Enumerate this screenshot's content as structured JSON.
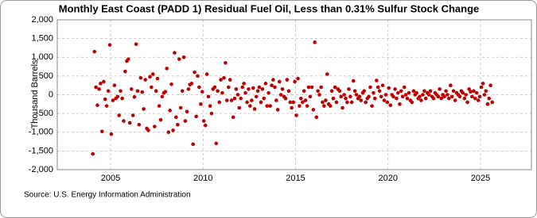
{
  "chart_data": {
    "type": "scatter",
    "title": "Monthly East Coast (PADD 1) Residual Fuel Oil, Less than 0.31% Sulfur Stock Change",
    "y_label": "Thousand Barrels",
    "source": "Source: U.S. Energy Information Administration",
    "color": "#c00000",
    "grid": true,
    "xlim": [
      2002.12,
      2027.75
    ],
    "xticks": [
      2005,
      2010,
      2015,
      2020,
      2025
    ],
    "ylim": [
      -2000,
      2000
    ],
    "yticks": [
      {
        "value": -2000,
        "label": "-2,000"
      },
      {
        "value": -1500,
        "label": "-1,500"
      },
      {
        "value": -1000,
        "label": "-1,000"
      },
      -500,
      0,
      500,
      {
        "value": 1000,
        "label": "1,000"
      },
      {
        "value": 1500,
        "label": "1,500"
      },
      {
        "value": 2000,
        "label": "2,000"
      }
    ],
    "x": [
      2004.04,
      2004.13,
      2004.21,
      2004.29,
      2004.38,
      2004.46,
      2004.54,
      2004.63,
      2004.71,
      2004.79,
      2004.88,
      2004.96,
      2005.04,
      2005.13,
      2005.21,
      2005.29,
      2005.38,
      2005.46,
      2005.54,
      2005.63,
      2005.71,
      2005.79,
      2005.88,
      2005.96,
      2006.04,
      2006.13,
      2006.21,
      2006.29,
      2006.38,
      2006.46,
      2006.54,
      2006.63,
      2006.71,
      2006.79,
      2006.88,
      2006.96,
      2007.04,
      2007.13,
      2007.21,
      2007.29,
      2007.38,
      2007.46,
      2007.54,
      2007.63,
      2007.71,
      2007.79,
      2007.88,
      2007.96,
      2008.04,
      2008.13,
      2008.21,
      2008.29,
      2008.38,
      2008.46,
      2008.54,
      2008.63,
      2008.71,
      2008.79,
      2008.88,
      2008.96,
      2009.04,
      2009.13,
      2009.21,
      2009.29,
      2009.38,
      2009.46,
      2009.54,
      2009.63,
      2009.71,
      2009.79,
      2009.88,
      2009.96,
      2010.04,
      2010.13,
      2010.21,
      2010.29,
      2010.38,
      2010.46,
      2010.54,
      2010.63,
      2010.71,
      2010.79,
      2010.88,
      2010.96,
      2011.04,
      2011.13,
      2011.21,
      2011.29,
      2011.38,
      2011.46,
      2011.54,
      2011.63,
      2011.71,
      2011.79,
      2011.88,
      2011.96,
      2012.04,
      2012.13,
      2012.21,
      2012.29,
      2012.38,
      2012.46,
      2012.54,
      2012.63,
      2012.71,
      2012.79,
      2012.88,
      2012.96,
      2013.04,
      2013.13,
      2013.21,
      2013.29,
      2013.38,
      2013.46,
      2013.54,
      2013.63,
      2013.71,
      2013.79,
      2013.88,
      2013.96,
      2014.04,
      2014.13,
      2014.21,
      2014.29,
      2014.38,
      2014.46,
      2014.54,
      2014.63,
      2014.71,
      2014.79,
      2014.88,
      2014.96,
      2015.04,
      2015.13,
      2015.21,
      2015.29,
      2015.38,
      2015.46,
      2015.54,
      2015.63,
      2015.71,
      2015.79,
      2015.88,
      2015.96,
      2016.04,
      2016.13,
      2016.21,
      2016.29,
      2016.38,
      2016.46,
      2016.54,
      2016.63,
      2016.71,
      2016.79,
      2016.88,
      2016.96,
      2017.04,
      2017.13,
      2017.21,
      2017.29,
      2017.38,
      2017.46,
      2017.54,
      2017.63,
      2017.71,
      2017.79,
      2017.88,
      2017.96,
      2018.04,
      2018.13,
      2018.21,
      2018.29,
      2018.38,
      2018.46,
      2018.54,
      2018.63,
      2018.71,
      2018.79,
      2018.88,
      2018.96,
      2019.04,
      2019.13,
      2019.21,
      2019.29,
      2019.38,
      2019.46,
      2019.54,
      2019.63,
      2019.71,
      2019.79,
      2019.88,
      2019.96,
      2020.04,
      2020.13,
      2020.21,
      2020.29,
      2020.38,
      2020.46,
      2020.54,
      2020.63,
      2020.71,
      2020.79,
      2020.88,
      2020.96,
      2021.04,
      2021.13,
      2021.21,
      2021.29,
      2021.38,
      2021.46,
      2021.54,
      2021.63,
      2021.71,
      2021.79,
      2021.88,
      2021.96,
      2022.04,
      2022.13,
      2022.21,
      2022.29,
      2022.38,
      2022.46,
      2022.54,
      2022.63,
      2022.71,
      2022.79,
      2022.88,
      2022.96,
      2023.04,
      2023.13,
      2023.21,
      2023.29,
      2023.38,
      2023.46,
      2023.54,
      2023.63,
      2023.71,
      2023.79,
      2023.88,
      2023.96,
      2024.04,
      2024.13,
      2024.21,
      2024.29,
      2024.38,
      2024.46,
      2024.54,
      2024.63,
      2024.71,
      2024.79,
      2024.88,
      2024.96,
      2025.04,
      2025.13,
      2025.21,
      2025.29,
      2025.38,
      2025.46,
      2025.54,
      2025.63
    ],
    "values": [
      -1580,
      1150,
      200,
      -280,
      150,
      300,
      -980,
      350,
      -120,
      -300,
      100,
      1330,
      -1050,
      -150,
      250,
      -100,
      -50,
      -550,
      100,
      -100,
      -700,
      620,
      900,
      950,
      -750,
      150,
      -550,
      -60,
      1350,
      100,
      -800,
      450,
      70,
      -380,
      400,
      -900,
      -950,
      480,
      200,
      550,
      -850,
      100,
      430,
      -300,
      -670,
      -50,
      50,
      80,
      700,
      -1000,
      -420,
      280,
      -950,
      1120,
      -600,
      -800,
      950,
      -350,
      100,
      1000,
      -700,
      -450,
      150,
      270,
      300,
      -1320,
      600,
      -580,
      500,
      200,
      -250,
      80,
      -700,
      -820,
      550,
      -50,
      -300,
      -500,
      150,
      200,
      -1300,
      100,
      -200,
      400,
      50,
      450,
      850,
      -150,
      200,
      400,
      -150,
      -600,
      -100,
      150,
      0,
      -350,
      -100,
      200,
      300,
      50,
      -200,
      150,
      -300,
      -150,
      180,
      -380,
      -50,
      100,
      200,
      -200,
      150,
      -100,
      300,
      -300,
      50,
      -300,
      250,
      400,
      200,
      -150,
      -400,
      350,
      0,
      150,
      -50,
      -100,
      400,
      100,
      -200,
      -350,
      -200,
      350,
      -550,
      430,
      -300,
      -100,
      -200,
      100,
      -150,
      -300,
      200,
      -50,
      200,
      -400,
      1400,
      -600,
      100,
      0,
      200,
      -200,
      -300,
      -150,
      550,
      -250,
      -300,
      100,
      -100,
      200,
      -200,
      150,
      100,
      -50,
      -350,
      0,
      -100,
      -200,
      150,
      -50,
      -200,
      370,
      100,
      0,
      -100,
      -50,
      -150,
      50,
      100,
      -200,
      -100,
      -50,
      200,
      -300,
      50,
      -100,
      380,
      200,
      100,
      -50,
      250,
      -150,
      0,
      -200,
      180,
      -280,
      0,
      -50,
      150,
      -100,
      50,
      -250,
      100,
      -50,
      200,
      0,
      -100,
      50,
      -150,
      -200,
      100,
      0,
      50,
      -100,
      -50,
      -150,
      0,
      100,
      -100,
      50,
      0,
      100,
      -50,
      -100,
      50,
      0,
      -50,
      150,
      -100,
      0,
      -50,
      100,
      0,
      -100,
      250,
      -50,
      100,
      -150,
      50,
      0,
      -50,
      100,
      50,
      -100,
      0,
      -200,
      150,
      80,
      -50,
      100,
      -100,
      50,
      -150,
      -50,
      200,
      300,
      0,
      100,
      -250,
      -100,
      250,
      -200
    ]
  }
}
